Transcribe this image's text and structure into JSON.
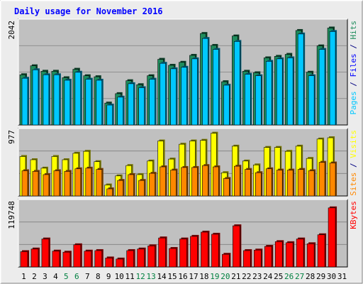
{
  "chart_data": {
    "type": "bar",
    "title": "Daily usage for November 2016",
    "categories": [
      "1",
      "2",
      "3",
      "4",
      "5",
      "6",
      "7",
      "8",
      "9",
      "10",
      "11",
      "12",
      "13",
      "14",
      "15",
      "16",
      "17",
      "18",
      "19",
      "20",
      "21",
      "22",
      "23",
      "24",
      "25",
      "26",
      "27",
      "28",
      "29",
      "30",
      "31"
    ],
    "weekend_days": [
      "5",
      "6",
      "12",
      "13",
      "19",
      "20",
      "26",
      "27"
    ],
    "colors": {
      "title": "#0000ff",
      "background": "#ffffff",
      "frame_bg": "#ececec",
      "panel_bg": "#c0c0c0",
      "grid": "#808080",
      "hits": "#1f8c5c",
      "files": "#00c8ff",
      "pages": "#00c8ff",
      "visits": "#ffff00",
      "sites": "#ff8800",
      "kbytes": "#ff0000",
      "weekday_label": "#000000",
      "weekend_label": "#008040"
    },
    "panels": [
      {
        "id": "hits",
        "ymax_label": "2042",
        "ymax": 2042,
        "right_label": [
          {
            "text": "Pages",
            "color": "#00c8ff"
          },
          {
            "text": " / ",
            "color": "#000080"
          },
          {
            "text": "Files",
            "color": "#0000ff"
          },
          {
            "text": " / ",
            "color": "#000080"
          },
          {
            "text": "Hits",
            "color": "#1f8c5c"
          }
        ],
        "series": [
          {
            "name": "Hits",
            "color": "#1f8c5c",
            "values": [
              1010,
              1190,
              1080,
              1080,
              950,
              1120,
              990,
              970,
              440,
              630,
              890,
              810,
              990,
              1320,
              1200,
              1260,
              1400,
              1840,
              1600,
              870,
              1790,
              1080,
              1050,
              1350,
              1380,
              1420,
              1900,
              1060,
              1590,
              1950,
              0
            ]
          },
          {
            "name": "Files",
            "color": "#00c8ff",
            "values": [
              940,
              1110,
              1010,
              1010,
              900,
              1060,
              920,
              900,
              400,
              560,
              830,
              750,
              920,
              1240,
              1130,
              1160,
              1330,
              1740,
              1520,
              800,
              1680,
              1020,
              990,
              1280,
              1330,
              1350,
              1830,
              990,
              1520,
              1880,
              0
            ]
          },
          {
            "name": "Pages",
            "color": "#00c8ff",
            "values": [
              0,
              0,
              0,
              0,
              0,
              0,
              0,
              0,
              0,
              0,
              0,
              0,
              0,
              0,
              0,
              0,
              0,
              0,
              0,
              0,
              0,
              0,
              0,
              0,
              0,
              0,
              0,
              0,
              0,
              0,
              0
            ]
          }
        ]
      },
      {
        "id": "visits",
        "ymax_label": "977",
        "ymax": 977,
        "right_label": [
          {
            "text": "Sites",
            "color": "#ff8800"
          },
          {
            "text": " / ",
            "color": "#000080"
          },
          {
            "text": "Visits",
            "color": "#ffff00"
          }
        ],
        "series": [
          {
            "name": "Visits",
            "color": "#ffff00",
            "values": [
              610,
              560,
              430,
              610,
              560,
              660,
              690,
              530,
              170,
              310,
              470,
              330,
              540,
              850,
              570,
              800,
              850,
              860,
              970,
              360,
              770,
              540,
              480,
              750,
              750,
              690,
              770,
              580,
              880,
              900,
              0
            ]
          },
          {
            "name": "Sites",
            "color": "#ff8800",
            "values": [
              390,
              380,
              330,
              390,
              380,
              420,
              430,
              410,
              110,
              240,
              330,
              240,
              350,
              450,
              400,
              440,
              440,
              470,
              450,
              270,
              460,
              410,
              360,
              420,
              400,
              400,
              410,
              390,
              520,
              510,
              0
            ]
          }
        ]
      },
      {
        "id": "kbytes",
        "ymax_label": "119748",
        "ymax": 119748,
        "right_label": [
          {
            "text": "KBytes",
            "color": "#ff0000"
          }
        ],
        "series": [
          {
            "name": "KBytes",
            "color": "#ff0000",
            "values": [
              29000,
              34000,
              53000,
              30000,
              28000,
              42000,
              30000,
              31000,
              17000,
              15000,
              31000,
              34000,
              40000,
              55000,
              35000,
              53000,
              58000,
              66000,
              62000,
              24000,
              78000,
              31000,
              32000,
              39000,
              48000,
              46000,
              53000,
              44000,
              61000,
              112000,
              0
            ]
          }
        ]
      }
    ]
  }
}
